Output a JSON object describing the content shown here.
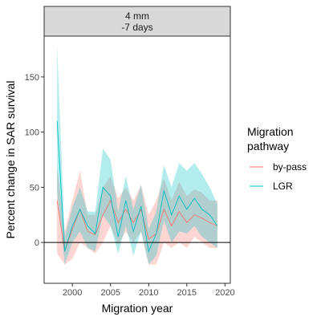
{
  "chart_data": {
    "type": "line",
    "facet": {
      "line1": "4 mm",
      "line2": "-7 days"
    },
    "xlabel": "Migration year",
    "ylabel": "Percent change in SAR survival",
    "xlim": [
      1996.3,
      2020.7
    ],
    "ylim": [
      -37,
      187
    ],
    "xticks": [
      2000,
      2005,
      2010,
      2015,
      2020
    ],
    "yticks": [
      0,
      50,
      100,
      150
    ],
    "hline": 0,
    "legend": {
      "title_line1": "Migration",
      "title_line2": "pathway",
      "position": "right"
    },
    "x": [
      1998,
      1999,
      2000,
      2001,
      2002,
      2003,
      2004,
      2005,
      2006,
      2007,
      2008,
      2009,
      2010,
      2011,
      2012,
      2013,
      2014,
      2015,
      2016,
      2017,
      2018,
      2019
    ],
    "series": [
      {
        "name": "by-pass",
        "color": "#F8766D",
        "fill": "#F8766D",
        "values": [
          38,
          -8,
          12,
          30,
          10,
          7,
          25,
          38,
          18,
          30,
          18,
          30,
          3,
          8,
          30,
          15,
          28,
          18,
          25,
          22,
          18,
          15
        ],
        "lower": [
          -10,
          -20,
          -15,
          0,
          -5,
          -10,
          0,
          15,
          -2,
          10,
          0,
          10,
          -20,
          -20,
          0,
          -5,
          0,
          -5,
          5,
          0,
          -5,
          -5
        ],
        "upper": [
          68,
          10,
          38,
          65,
          25,
          25,
          50,
          60,
          40,
          50,
          38,
          52,
          25,
          38,
          58,
          38,
          55,
          42,
          48,
          45,
          38,
          38
        ]
      },
      {
        "name": "LGR",
        "color": "#00BFC4",
        "fill": "#00BFC4",
        "values": [
          110,
          -8,
          15,
          30,
          15,
          8,
          50,
          42,
          5,
          38,
          10,
          33,
          -8,
          8,
          47,
          25,
          42,
          30,
          40,
          30,
          25,
          15
        ],
        "lower": [
          45,
          -20,
          0,
          10,
          -5,
          -8,
          25,
          15,
          -10,
          15,
          -12,
          10,
          -20,
          -12,
          20,
          0,
          10,
          8,
          15,
          5,
          0,
          -5
        ],
        "upper": [
          178,
          5,
          32,
          50,
          28,
          28,
          85,
          75,
          28,
          60,
          30,
          52,
          12,
          28,
          70,
          50,
          72,
          65,
          72,
          62,
          50,
          35
        ]
      }
    ]
  }
}
